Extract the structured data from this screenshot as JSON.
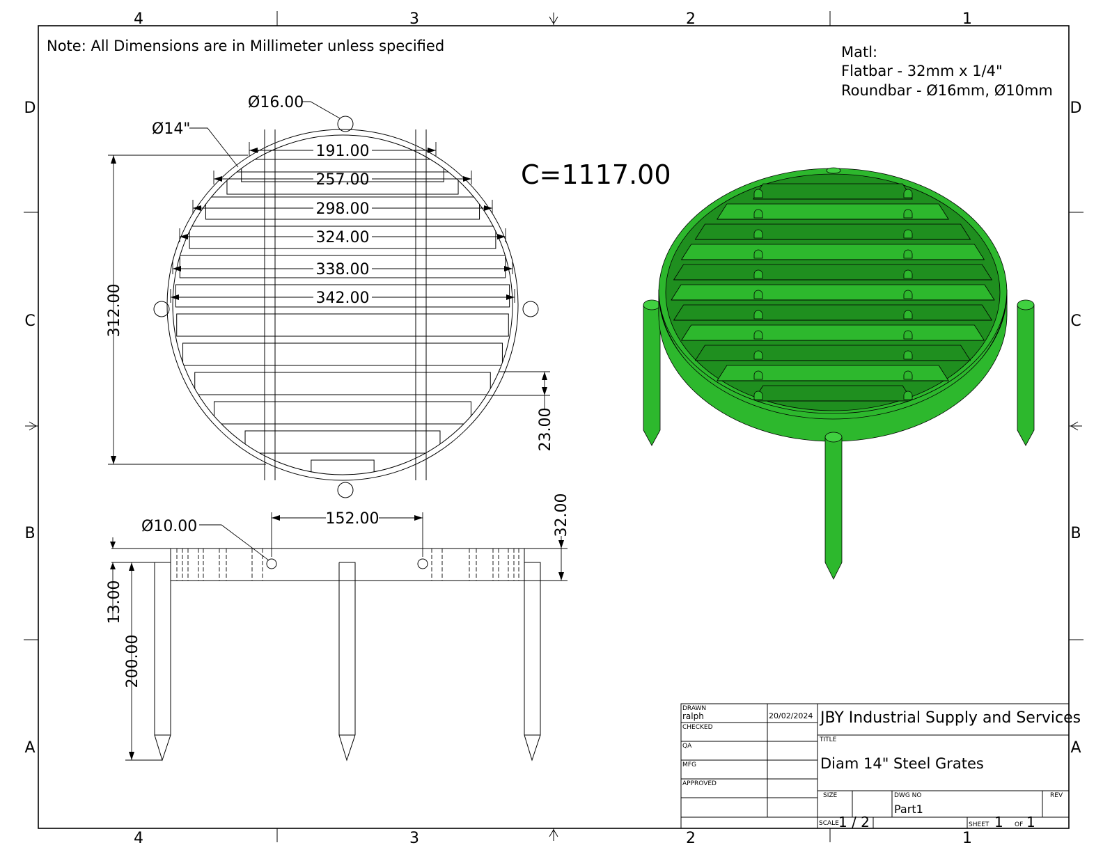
{
  "zones": {
    "columns": [
      "4",
      "3",
      "2",
      "1"
    ],
    "rows": [
      "D",
      "C",
      "B",
      "A"
    ]
  },
  "note": "Note: All Dimensions are in Millimeter unless specified",
  "material": {
    "heading": "Matl:",
    "line1": "Flatbar - 32mm x 1/4\"",
    "line2": "Roundbar - Ø16mm, Ø10mm"
  },
  "circumference": "C=1117.00",
  "top_view": {
    "dia_roundbar": "Ø16.00",
    "dia_outer": "Ø14\"",
    "bar_widths": [
      "191.00",
      "257.00",
      "298.00",
      "324.00",
      "338.00",
      "342.00"
    ],
    "overall_height": "312.00",
    "bar_spacing": "23.00"
  },
  "side_view": {
    "dia_pin": "Ø10.00",
    "pin_spacing": "152.00",
    "flat_height": "32.00",
    "offset": "13.00",
    "leg_length": "200.00"
  },
  "title_block": {
    "drawn_label": "DRAWN",
    "drawn_by": "ralph",
    "date": "20/02/2024",
    "checked_label": "CHECKED",
    "qa_label": "QA",
    "mfg_label": "MFG",
    "approved_label": "APPROVED",
    "company": "JBY Industrial Supply and Services",
    "title_label": "TITLE",
    "title": "Diam 14\" Steel Grates",
    "size_label": "SIZE",
    "dwg_no_label": "DWG NO",
    "dwg_no": "Part1",
    "rev_label": "REV",
    "scale_label": "SCALE",
    "scale": "1 / 2",
    "sheet_label": "SHEET",
    "sheet": "1",
    "of_label": "OF",
    "of": "1"
  },
  "colors": {
    "render_green": "#2db82d",
    "line": "#000000"
  }
}
